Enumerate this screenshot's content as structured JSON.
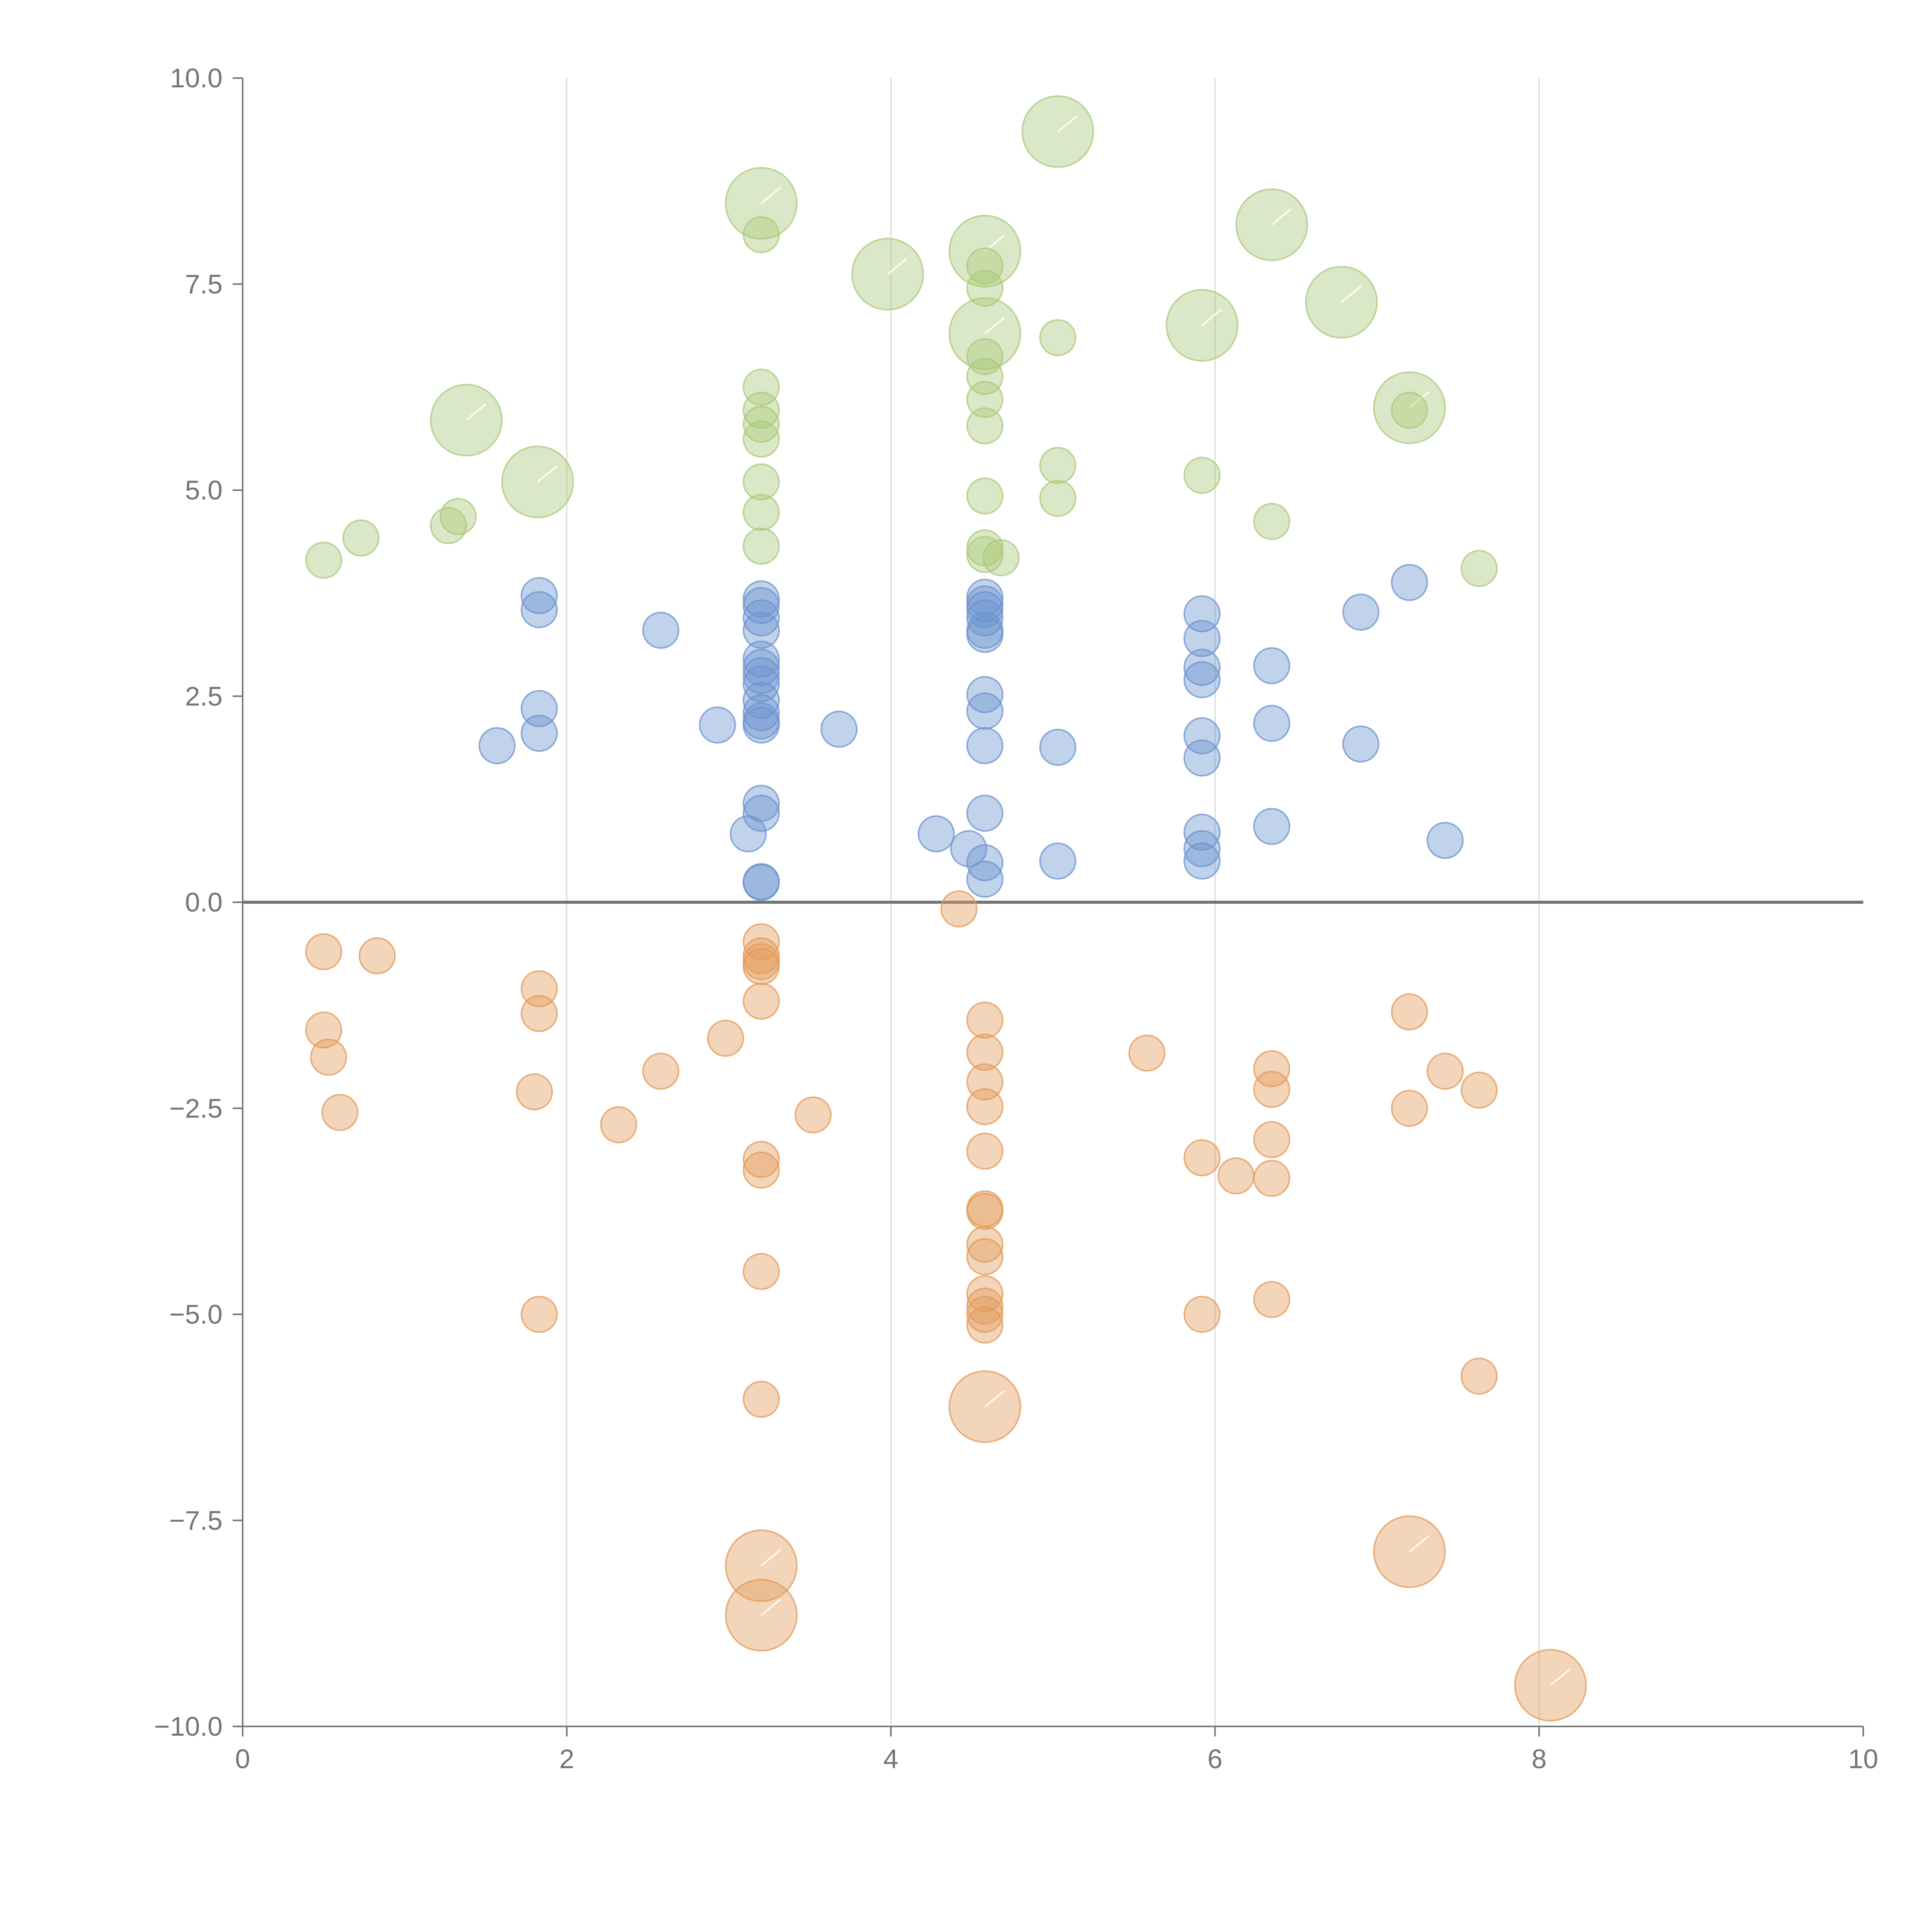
{
  "chart_data": {
    "type": "scatter",
    "subtype": "bubble",
    "title": "",
    "xlabel": "",
    "ylabel": "",
    "xlim": [
      0,
      10
    ],
    "ylim": [
      -10,
      10
    ],
    "x_ticks": [
      "0",
      "2",
      "4",
      "6",
      "8",
      "10"
    ],
    "y_ticks": [
      "10.0",
      "7.5",
      "5.0",
      "2.5",
      "0.0",
      "−2.5",
      "−5.0",
      "−7.5",
      "−10.0"
    ],
    "x_tick_values": [
      0,
      2,
      4,
      6,
      8,
      10
    ],
    "y_tick_values": [
      10,
      7.5,
      5,
      2.5,
      0,
      -2.5,
      -5,
      -7.5,
      -10
    ],
    "grid": "vertical gridlines at x ticks",
    "zero_line": true,
    "legend": "none",
    "colors": {
      "green": "#a9c97a",
      "blue": "#6b93cf",
      "orange": "#e39a5a",
      "axis": "#757575",
      "grid": "#d9d9d9"
    },
    "series": [
      {
        "color": "#a9c97a",
        "points": [
          {
            "x": 0.5,
            "y": 4.15,
            "size": 1
          },
          {
            "x": 0.73,
            "y": 4.42,
            "size": 1
          },
          {
            "x": 1.27,
            "y": 4.57,
            "size": 1
          },
          {
            "x": 1.33,
            "y": 4.68,
            "size": 1
          },
          {
            "x": 1.38,
            "y": 5.85,
            "size": 2
          },
          {
            "x": 1.82,
            "y": 5.1,
            "size": 2
          },
          {
            "x": 3.2,
            "y": 8.48,
            "size": 2
          },
          {
            "x": 3.2,
            "y": 8.1,
            "size": 1
          },
          {
            "x": 3.2,
            "y": 6.25,
            "size": 1
          },
          {
            "x": 3.2,
            "y": 5.97,
            "size": 1
          },
          {
            "x": 3.2,
            "y": 5.8,
            "size": 1
          },
          {
            "x": 3.2,
            "y": 5.62,
            "size": 1
          },
          {
            "x": 3.2,
            "y": 5.1,
            "size": 1
          },
          {
            "x": 3.2,
            "y": 4.73,
            "size": 1
          },
          {
            "x": 3.2,
            "y": 4.32,
            "size": 1
          },
          {
            "x": 3.98,
            "y": 7.62,
            "size": 2
          },
          {
            "x": 4.58,
            "y": 7.9,
            "size": 2
          },
          {
            "x": 4.58,
            "y": 7.72,
            "size": 1
          },
          {
            "x": 4.58,
            "y": 7.45,
            "size": 1
          },
          {
            "x": 4.58,
            "y": 6.9,
            "size": 2
          },
          {
            "x": 4.58,
            "y": 6.62,
            "size": 1
          },
          {
            "x": 4.58,
            "y": 6.38,
            "size": 1
          },
          {
            "x": 4.58,
            "y": 6.1,
            "size": 1
          },
          {
            "x": 4.58,
            "y": 5.78,
            "size": 1
          },
          {
            "x": 4.58,
            "y": 4.93,
            "size": 1
          },
          {
            "x": 4.58,
            "y": 4.3,
            "size": 1
          },
          {
            "x": 4.58,
            "y": 4.22,
            "size": 1
          },
          {
            "x": 4.68,
            "y": 4.18,
            "size": 1
          },
          {
            "x": 5.03,
            "y": 9.35,
            "size": 2
          },
          {
            "x": 5.03,
            "y": 6.85,
            "size": 1
          },
          {
            "x": 5.03,
            "y": 5.3,
            "size": 1
          },
          {
            "x": 5.03,
            "y": 4.9,
            "size": 1
          },
          {
            "x": 5.92,
            "y": 7.0,
            "size": 2
          },
          {
            "x": 5.92,
            "y": 5.18,
            "size": 1
          },
          {
            "x": 6.35,
            "y": 8.22,
            "size": 2
          },
          {
            "x": 6.35,
            "y": 4.62,
            "size": 1
          },
          {
            "x": 6.78,
            "y": 7.28,
            "size": 2
          },
          {
            "x": 7.2,
            "y": 6.0,
            "size": 2
          },
          {
            "x": 7.2,
            "y": 5.97,
            "size": 1
          },
          {
            "x": 7.63,
            "y": 4.05,
            "size": 1
          }
        ]
      },
      {
        "color": "#6b93cf",
        "points": [
          {
            "x": 1.57,
            "y": 1.9,
            "size": 1
          },
          {
            "x": 1.83,
            "y": 3.72,
            "size": 1
          },
          {
            "x": 1.83,
            "y": 3.55,
            "size": 1
          },
          {
            "x": 1.83,
            "y": 2.35,
            "size": 1
          },
          {
            "x": 1.83,
            "y": 2.05,
            "size": 1
          },
          {
            "x": 2.58,
            "y": 3.3,
            "size": 1
          },
          {
            "x": 2.93,
            "y": 2.15,
            "size": 1
          },
          {
            "x": 3.2,
            "y": 3.68,
            "size": 1
          },
          {
            "x": 3.2,
            "y": 3.6,
            "size": 1
          },
          {
            "x": 3.2,
            "y": 3.45,
            "size": 1
          },
          {
            "x": 3.2,
            "y": 3.3,
            "size": 1
          },
          {
            "x": 3.2,
            "y": 2.95,
            "size": 1
          },
          {
            "x": 3.2,
            "y": 2.85,
            "size": 1
          },
          {
            "x": 3.2,
            "y": 2.75,
            "size": 1
          },
          {
            "x": 3.2,
            "y": 2.65,
            "size": 1
          },
          {
            "x": 3.2,
            "y": 2.45,
            "size": 1
          },
          {
            "x": 3.2,
            "y": 2.3,
            "size": 1
          },
          {
            "x": 3.2,
            "y": 2.2,
            "size": 1
          },
          {
            "x": 3.2,
            "y": 2.15,
            "size": 1
          },
          {
            "x": 3.2,
            "y": 1.2,
            "size": 1
          },
          {
            "x": 3.2,
            "y": 1.08,
            "size": 1
          },
          {
            "x": 3.12,
            "y": 0.83,
            "size": 1
          },
          {
            "x": 3.2,
            "y": 0.25,
            "size": 1
          },
          {
            "x": 3.2,
            "y": 0.24,
            "size": 1
          },
          {
            "x": 3.68,
            "y": 2.1,
            "size": 1
          },
          {
            "x": 4.28,
            "y": 0.83,
            "size": 1
          },
          {
            "x": 4.48,
            "y": 0.65,
            "size": 1
          },
          {
            "x": 4.58,
            "y": 3.7,
            "size": 1
          },
          {
            "x": 4.58,
            "y": 3.62,
            "size": 1
          },
          {
            "x": 4.58,
            "y": 3.55,
            "size": 1
          },
          {
            "x": 4.58,
            "y": 3.45,
            "size": 1
          },
          {
            "x": 4.58,
            "y": 3.3,
            "size": 1
          },
          {
            "x": 4.58,
            "y": 3.25,
            "size": 1
          },
          {
            "x": 4.58,
            "y": 2.52,
            "size": 1
          },
          {
            "x": 4.58,
            "y": 2.32,
            "size": 1
          },
          {
            "x": 4.58,
            "y": 1.9,
            "size": 1
          },
          {
            "x": 4.58,
            "y": 1.08,
            "size": 1
          },
          {
            "x": 4.58,
            "y": 0.48,
            "size": 1
          },
          {
            "x": 4.58,
            "y": 0.28,
            "size": 1
          },
          {
            "x": 5.03,
            "y": 1.88,
            "size": 1
          },
          {
            "x": 5.03,
            "y": 0.5,
            "size": 1
          },
          {
            "x": 5.92,
            "y": 3.5,
            "size": 1
          },
          {
            "x": 5.92,
            "y": 3.2,
            "size": 1
          },
          {
            "x": 5.92,
            "y": 2.85,
            "size": 1
          },
          {
            "x": 5.92,
            "y": 2.7,
            "size": 1
          },
          {
            "x": 5.92,
            "y": 2.02,
            "size": 1
          },
          {
            "x": 5.92,
            "y": 1.75,
            "size": 1
          },
          {
            "x": 5.92,
            "y": 0.85,
            "size": 1
          },
          {
            "x": 5.92,
            "y": 0.65,
            "size": 1
          },
          {
            "x": 5.92,
            "y": 0.5,
            "size": 1
          },
          {
            "x": 6.35,
            "y": 2.87,
            "size": 1
          },
          {
            "x": 6.35,
            "y": 2.17,
            "size": 1
          },
          {
            "x": 6.35,
            "y": 0.92,
            "size": 1
          },
          {
            "x": 6.9,
            "y": 3.52,
            "size": 1
          },
          {
            "x": 6.9,
            "y": 1.92,
            "size": 1
          },
          {
            "x": 7.2,
            "y": 3.88,
            "size": 1
          },
          {
            "x": 7.42,
            "y": 0.75,
            "size": 1
          }
        ]
      },
      {
        "color": "#e39a5a",
        "points": [
          {
            "x": 0.5,
            "y": -0.6,
            "size": 1
          },
          {
            "x": 0.83,
            "y": -0.65,
            "size": 1
          },
          {
            "x": 0.5,
            "y": -1.55,
            "size": 1
          },
          {
            "x": 0.53,
            "y": -1.88,
            "size": 1
          },
          {
            "x": 0.6,
            "y": -2.55,
            "size": 1
          },
          {
            "x": 1.83,
            "y": -1.05,
            "size": 1
          },
          {
            "x": 1.83,
            "y": -1.35,
            "size": 1
          },
          {
            "x": 1.8,
            "y": -2.3,
            "size": 1
          },
          {
            "x": 1.83,
            "y": -5.0,
            "size": 1
          },
          {
            "x": 2.32,
            "y": -2.7,
            "size": 1
          },
          {
            "x": 2.58,
            "y": -2.05,
            "size": 1
          },
          {
            "x": 2.98,
            "y": -1.65,
            "size": 1
          },
          {
            "x": 3.2,
            "y": -0.48,
            "size": 1
          },
          {
            "x": 3.2,
            "y": -0.65,
            "size": 1
          },
          {
            "x": 3.2,
            "y": -0.72,
            "size": 1
          },
          {
            "x": 3.2,
            "y": -0.78,
            "size": 1
          },
          {
            "x": 3.2,
            "y": -1.2,
            "size": 1
          },
          {
            "x": 3.2,
            "y": -3.12,
            "size": 1
          },
          {
            "x": 3.2,
            "y": -3.25,
            "size": 1
          },
          {
            "x": 3.2,
            "y": -4.48,
            "size": 1
          },
          {
            "x": 3.2,
            "y": -6.03,
            "size": 1
          },
          {
            "x": 3.2,
            "y": -8.05,
            "size": 2
          },
          {
            "x": 3.2,
            "y": -8.65,
            "size": 2
          },
          {
            "x": 3.52,
            "y": -2.58,
            "size": 1
          },
          {
            "x": 4.42,
            "y": -0.08,
            "size": 1
          },
          {
            "x": 4.58,
            "y": -1.43,
            "size": 1
          },
          {
            "x": 4.58,
            "y": -1.82,
            "size": 1
          },
          {
            "x": 4.58,
            "y": -2.18,
            "size": 1
          },
          {
            "x": 4.58,
            "y": -2.48,
            "size": 1
          },
          {
            "x": 4.58,
            "y": -3.02,
            "size": 1
          },
          {
            "x": 4.58,
            "y": -3.72,
            "size": 1
          },
          {
            "x": 4.58,
            "y": -3.75,
            "size": 1
          },
          {
            "x": 4.58,
            "y": -4.15,
            "size": 1
          },
          {
            "x": 4.58,
            "y": -4.3,
            "size": 1
          },
          {
            "x": 4.58,
            "y": -4.75,
            "size": 1
          },
          {
            "x": 4.58,
            "y": -4.9,
            "size": 1
          },
          {
            "x": 4.58,
            "y": -5.0,
            "size": 1
          },
          {
            "x": 4.58,
            "y": -5.13,
            "size": 1
          },
          {
            "x": 4.58,
            "y": -6.12,
            "size": 2
          },
          {
            "x": 5.58,
            "y": -1.83,
            "size": 1
          },
          {
            "x": 5.92,
            "y": -3.1,
            "size": 1
          },
          {
            "x": 5.92,
            "y": -5.0,
            "size": 1
          },
          {
            "x": 6.13,
            "y": -3.32,
            "size": 1
          },
          {
            "x": 6.35,
            "y": -2.02,
            "size": 1
          },
          {
            "x": 6.35,
            "y": -2.27,
            "size": 1
          },
          {
            "x": 6.35,
            "y": -2.88,
            "size": 1
          },
          {
            "x": 6.35,
            "y": -3.35,
            "size": 1
          },
          {
            "x": 6.35,
            "y": -4.82,
            "size": 1
          },
          {
            "x": 7.2,
            "y": -1.33,
            "size": 1
          },
          {
            "x": 7.2,
            "y": -2.5,
            "size": 1
          },
          {
            "x": 7.2,
            "y": -7.88,
            "size": 2
          },
          {
            "x": 7.42,
            "y": -2.05,
            "size": 1
          },
          {
            "x": 7.63,
            "y": -2.28,
            "size": 1
          },
          {
            "x": 7.63,
            "y": -5.75,
            "size": 1
          },
          {
            "x": 8.07,
            "y": -9.5,
            "size": 2
          }
        ]
      }
    ]
  }
}
